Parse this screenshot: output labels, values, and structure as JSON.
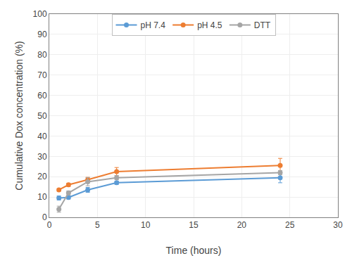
{
  "chart_data": {
    "type": "line",
    "xlabel": "Time (hours)",
    "ylabel": "Cumulative Dox concentration (%)",
    "xlim": [
      0,
      30
    ],
    "ylim": [
      0,
      100
    ],
    "xticks": [
      0,
      5,
      10,
      15,
      20,
      25,
      30
    ],
    "yticks": [
      0,
      10,
      20,
      30,
      40,
      50,
      60,
      70,
      80,
      90,
      100
    ],
    "grid": true,
    "legend": "top",
    "marker": "circle",
    "series": [
      {
        "name": "pH 7.4",
        "color": "#5B9BD5",
        "x": [
          1,
          2,
          4,
          7,
          24
        ],
        "values": [
          9.5,
          9.8,
          13.5,
          17.0,
          19.5
        ],
        "yerr": [
          1.0,
          0.8,
          1.2,
          0.8,
          2.5
        ]
      },
      {
        "name": "pH 4.5",
        "color": "#ED7D31",
        "x": [
          1,
          2,
          4,
          7,
          24
        ],
        "values": [
          13.5,
          16.0,
          18.5,
          22.5,
          25.5
        ],
        "yerr": [
          0.5,
          0.8,
          1.2,
          2.0,
          3.5
        ]
      },
      {
        "name": "DTT",
        "color": "#A5A5A5",
        "x": [
          1,
          2,
          4,
          7,
          24
        ],
        "values": [
          4.0,
          12.0,
          17.5,
          19.5,
          22.0
        ],
        "yerr": [
          1.5,
          1.0,
          2.0,
          1.0,
          1.0
        ]
      }
    ]
  }
}
